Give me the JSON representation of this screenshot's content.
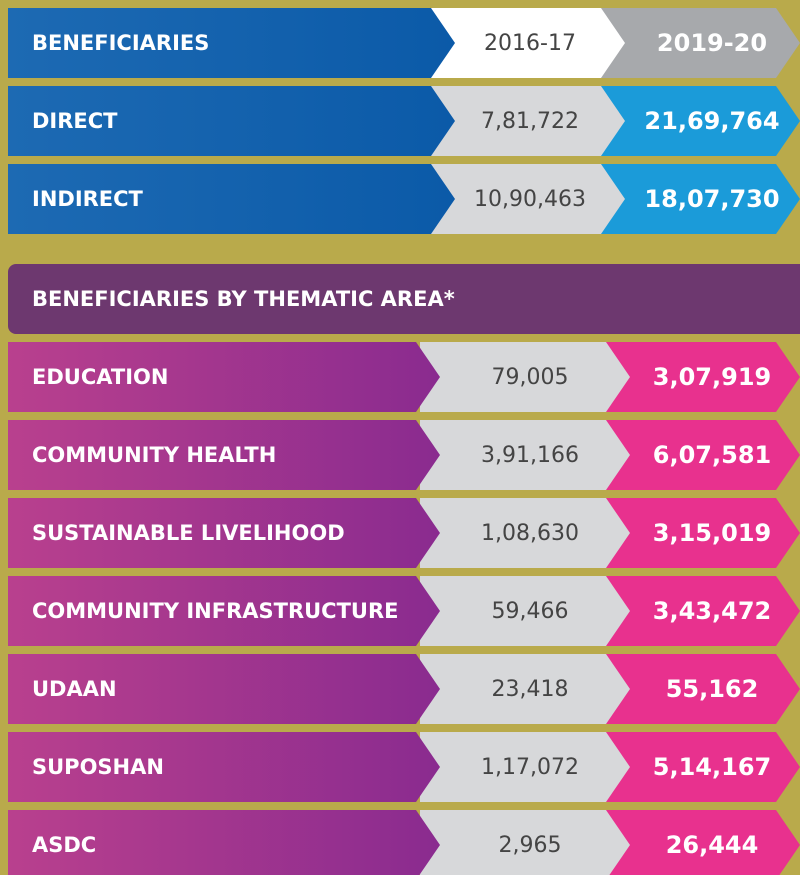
{
  "header": {
    "label": "BENEFICIARIES",
    "col1": "2016-17",
    "col2": "2019-20"
  },
  "rows": [
    {
      "label": "DIRECT",
      "v1": "7,81,722",
      "v2": "21,69,764"
    },
    {
      "label": "INDIRECT",
      "v1": "10,90,463",
      "v2": "18,07,730"
    }
  ],
  "thematic": {
    "title": "BENEFICIARIES BY THEMATIC AREA*",
    "rows": [
      {
        "label": "EDUCATION",
        "v1": "79,005",
        "v2": "3,07,919"
      },
      {
        "label": "COMMUNITY HEALTH",
        "v1": "3,91,166",
        "v2": "6,07,581"
      },
      {
        "label": "SUSTAINABLE LIVELIHOOD",
        "v1": "1,08,630",
        "v2": "3,15,019"
      },
      {
        "label": "COMMUNITY INFRASTRUCTURE",
        "v1": "59,466",
        "v2": "3,43,472"
      },
      {
        "label": "UDAAN",
        "v1": "23,418",
        "v2": "55,162"
      },
      {
        "label": "SUPOSHAN",
        "v1": "1,17,072",
        "v2": "5,14,167"
      },
      {
        "label": "ASDC",
        "v1": "2,965",
        "v2": "26,444"
      }
    ]
  }
}
